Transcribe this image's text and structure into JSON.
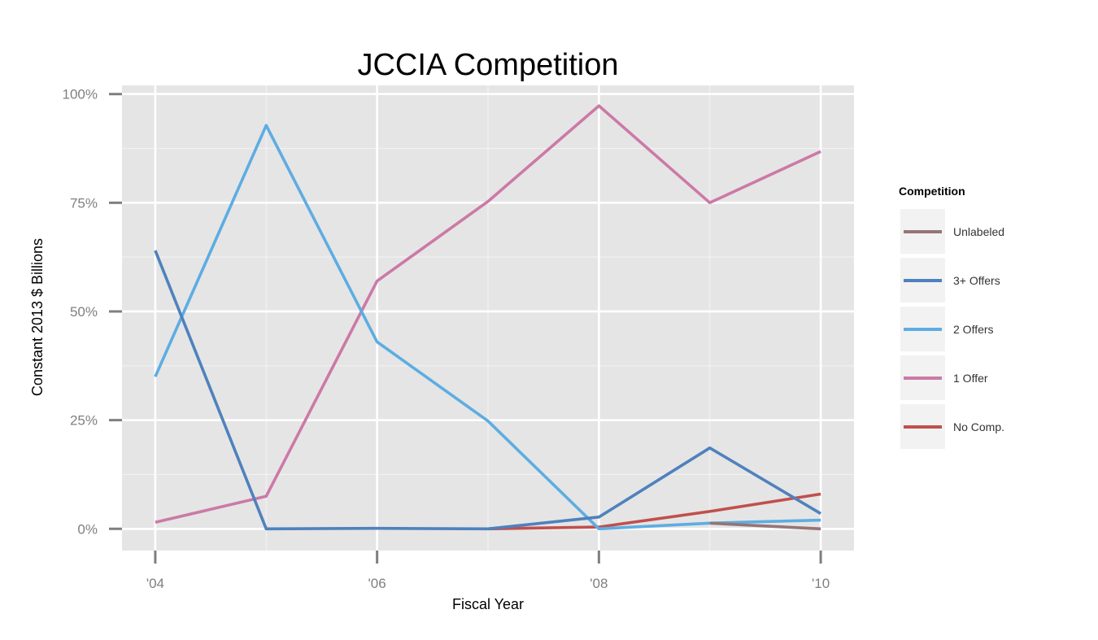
{
  "chart_data": {
    "type": "line",
    "title": "JCCIA Competition",
    "xlabel": "Fiscal Year",
    "ylabel": "Constant 2013 $ Billions",
    "x": [
      2004,
      2005,
      2006,
      2007,
      2008,
      2009,
      2010
    ],
    "x_ticks": [
      2004,
      2006,
      2008,
      2010
    ],
    "x_tick_labels": [
      "'04",
      "'06",
      "'08",
      "'10"
    ],
    "xlim": [
      2003.7,
      2010.3
    ],
    "y_ticks": [
      0,
      25,
      50,
      75,
      100
    ],
    "y_tick_labels": [
      "0%",
      "25%",
      "50%",
      "75%",
      "100%"
    ],
    "ylim": [
      -5,
      102
    ],
    "grid": true,
    "legend_title": "Competition",
    "legend_position": "right",
    "series": [
      {
        "name": "Unlabeled",
        "color": "#957577",
        "x": [
          2009,
          2010
        ],
        "values": [
          1.3,
          0
        ]
      },
      {
        "name": "3+ Offers",
        "color": "#4f81bd",
        "x": [
          2004,
          2005,
          2006,
          2007,
          2008,
          2009,
          2010
        ],
        "values": [
          64,
          0,
          0.1,
          0,
          2.7,
          18.6,
          3.5
        ]
      },
      {
        "name": "2 Offers",
        "color": "#5dade2",
        "x": [
          2004,
          2005,
          2006,
          2007,
          2008,
          2009,
          2010
        ],
        "values": [
          35,
          92.8,
          43,
          24.8,
          0,
          1.3,
          2
        ]
      },
      {
        "name": "1 Offer",
        "color": "#cc79a7",
        "x": [
          2004,
          2005,
          2006,
          2007,
          2008,
          2009,
          2010
        ],
        "values": [
          1.5,
          7.5,
          57,
          75.3,
          97.3,
          75,
          86.8
        ]
      },
      {
        "name": "No Comp.",
        "color": "#c0504d",
        "x": [
          2007,
          2008,
          2009,
          2010
        ],
        "values": [
          0,
          0.4,
          4,
          8
        ]
      }
    ]
  }
}
